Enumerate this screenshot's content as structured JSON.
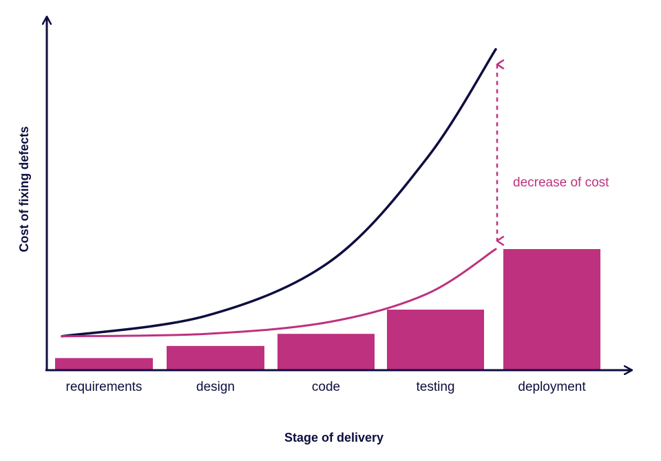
{
  "chart_data": {
    "type": "bar",
    "xlabel": "Stage of delivery",
    "ylabel": "Cost of fixing defects",
    "categories": [
      "requirements",
      "design",
      "code",
      "testing",
      "deployment"
    ],
    "values": [
      1,
      2,
      3,
      5,
      10
    ],
    "ylim": [
      0,
      30
    ],
    "grid": false,
    "curves": [
      {
        "values": [
          2.8,
          4.5,
          9,
          17.5,
          26.5
        ]
      },
      {
        "values": [
          2.8,
          3,
          4,
          6.3,
          10
        ]
      }
    ],
    "annotation": {
      "text": "decrease of cost",
      "from_value": 26.5,
      "to_value": 10
    },
    "colors": {
      "bar": "#be317f",
      "upper_curve": "#0d0d3f",
      "lower_curve": "#be317f",
      "axis": "#0d0d3f",
      "annotation": "#be317f"
    }
  }
}
